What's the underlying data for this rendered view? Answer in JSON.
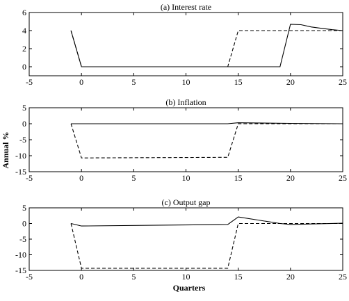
{
  "y_axis_shared_label": "Annual %",
  "x_axis_shared_label": "Quarters",
  "chart_data": [
    {
      "type": "line",
      "title": "(a) Interest rate",
      "xlim": [
        -5,
        25
      ],
      "ylim": [
        -1,
        6
      ],
      "x_ticks": [
        -5,
        0,
        5,
        10,
        15,
        20,
        25
      ],
      "y_ticks": [
        0,
        2,
        4,
        6
      ],
      "series": [
        {
          "style": "solid",
          "x": [
            -1,
            0,
            19,
            20,
            21,
            22,
            23,
            24,
            25
          ],
          "y": [
            4,
            0,
            0,
            4.7,
            4.65,
            4.4,
            4.25,
            4.1,
            4.0
          ]
        },
        {
          "style": "dashed",
          "x": [
            -1,
            0,
            14,
            15,
            25
          ],
          "y": [
            4,
            0,
            0,
            4,
            4
          ]
        }
      ]
    },
    {
      "type": "line",
      "title": "(b) Inflation",
      "xlim": [
        -5,
        25
      ],
      "ylim": [
        -15,
        5
      ],
      "x_ticks": [
        -5,
        0,
        5,
        10,
        15,
        20,
        25
      ],
      "y_ticks": [
        -15,
        -10,
        -5,
        0,
        5
      ],
      "series": [
        {
          "style": "solid",
          "x": [
            -1,
            0,
            14,
            15,
            20,
            25
          ],
          "y": [
            0,
            0,
            0,
            0.3,
            0.1,
            0
          ]
        },
        {
          "style": "dashed",
          "x": [
            -1,
            0,
            14,
            15,
            25
          ],
          "y": [
            0,
            -10.7,
            -10.5,
            0,
            0
          ]
        }
      ]
    },
    {
      "type": "line",
      "title": "(c) Output gap",
      "xlim": [
        -5,
        25
      ],
      "ylim": [
        -15,
        5
      ],
      "x_ticks": [
        -5,
        0,
        5,
        10,
        15,
        20,
        25
      ],
      "y_ticks": [
        -15,
        -10,
        -5,
        0,
        5
      ],
      "series": [
        {
          "style": "solid",
          "x": [
            -1,
            0,
            14,
            15,
            19,
            20,
            25
          ],
          "y": [
            0,
            -0.8,
            -0.3,
            2.1,
            0,
            -0.3,
            0.1
          ]
        },
        {
          "style": "dashed",
          "x": [
            -1,
            0,
            14,
            15,
            25
          ],
          "y": [
            0,
            -14.3,
            -14.3,
            0,
            0
          ]
        }
      ]
    }
  ]
}
